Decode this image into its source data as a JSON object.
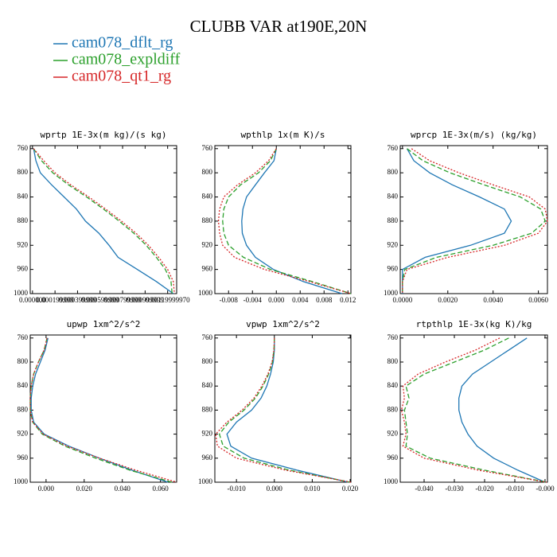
{
  "title": "CLUBB VAR at190E,20N",
  "legend": [
    {
      "name": "cam078_dflt_rg",
      "color": "#1f77b4",
      "dash": "none"
    },
    {
      "name": "cam078_expldiff",
      "color": "#2ca02c",
      "dash": "6,3"
    },
    {
      "name": "cam078_qt1_rg",
      "color": "#d62728",
      "dash": "2,2"
    }
  ],
  "chart_data": [
    {
      "type": "line",
      "title": "wprtp  1E-3x(m kg)/(s kg)",
      "y": [
        760,
        780,
        800,
        820,
        840,
        860,
        880,
        900,
        920,
        940,
        960,
        980,
        1000
      ],
      "ylim": [
        1000,
        755
      ],
      "yticks": [
        760,
        800,
        840,
        880,
        920,
        960,
        1000
      ],
      "xlim": [
        -2e-05,
        0.00128
      ],
      "xticks": [
        {
          "value": 0,
          "label": "0.000000"
        },
        {
          "value": 0.0002,
          "label": "0.000199999"
        },
        {
          "value": 0.0004,
          "label": "0.000399999"
        },
        {
          "value": 0.0006,
          "label": "0.000599999"
        },
        {
          "value": 0.0008,
          "label": "0.000799999"
        },
        {
          "value": 0.001,
          "label": "0.000999999"
        },
        {
          "value": 0.0012,
          "label": "0.00119999970"
        }
      ],
      "series": [
        {
          "values": [
            1e-05,
            3e-05,
            7e-05,
            0.00017,
            0.00028,
            0.00039,
            0.00047,
            0.00059,
            0.00068,
            0.00076,
            0.00093,
            0.0011,
            0.00125
          ]
        },
        {
          "values": [
            1e-05,
            8e-05,
            0.00018,
            0.00032,
            0.00048,
            0.00063,
            0.00077,
            0.0009,
            0.00101,
            0.0011,
            0.00118,
            0.00123,
            0.00124
          ]
        },
        {
          "values": [
            1e-05,
            0.0001,
            0.0002,
            0.00034,
            0.0005,
            0.00065,
            0.00079,
            0.00092,
            0.00103,
            0.00112,
            0.0012,
            0.00125,
            0.00126
          ]
        }
      ]
    },
    {
      "type": "line",
      "title": "wpthlp  1x(m K)/s",
      "y": [
        760,
        780,
        800,
        820,
        840,
        860,
        880,
        900,
        920,
        940,
        960,
        980,
        1000
      ],
      "ylim": [
        1000,
        755
      ],
      "yticks": [
        760,
        800,
        840,
        880,
        920,
        960,
        1000
      ],
      "xlim": [
        -0.0103,
        0.0125
      ],
      "xticks": [
        -0.008,
        -0.004,
        {
          "value": 0,
          "label": "0.000"
        },
        0.004,
        0.008,
        0.012
      ],
      "series": [
        {
          "values": [
            0,
            -0.0004,
            -0.002,
            -0.0035,
            -0.005,
            -0.0056,
            -0.0058,
            -0.0057,
            -0.005,
            -0.0035,
            -0.0005,
            0.0045,
            0.011
          ]
        },
        {
          "values": [
            0,
            -0.001,
            -0.003,
            -0.006,
            -0.008,
            -0.0088,
            -0.009,
            -0.0088,
            -0.008,
            -0.0055,
            -0.001,
            0.006,
            0.0125
          ]
        },
        {
          "values": [
            0,
            -0.0013,
            -0.0035,
            -0.0065,
            -0.0088,
            -0.0095,
            -0.0097,
            -0.0095,
            -0.009,
            -0.007,
            -0.002,
            0.0055,
            0.0125
          ]
        }
      ]
    },
    {
      "type": "line",
      "title": "wprcp  1E-3x(m/s) (kg/kg)",
      "y": [
        760,
        780,
        800,
        820,
        840,
        860,
        880,
        900,
        920,
        940,
        960,
        980,
        1000
      ],
      "ylim": [
        1000,
        755
      ],
      "yticks": [
        760,
        800,
        840,
        880,
        920,
        960,
        1000
      ],
      "xlim": [
        -0.0001,
        0.0064
      ],
      "xticks": [
        {
          "value": 0,
          "label": "0.0000"
        },
        {
          "value": 0.002,
          "label": "0.0020"
        },
        {
          "value": 0.004,
          "label": "0.0040"
        },
        {
          "value": 0.006,
          "label": "0.0060"
        }
      ],
      "series": [
        {
          "values": [
            0.0002,
            0.0005,
            0.0012,
            0.0022,
            0.0034,
            0.0045,
            0.0048,
            0.0045,
            0.003,
            0.001,
            0,
            0,
            0
          ]
        },
        {
          "values": [
            0.0002,
            0.0009,
            0.0021,
            0.0036,
            0.0052,
            0.0061,
            0.0063,
            0.0057,
            0.004,
            0.0015,
            0.0001,
            0,
            0
          ]
        },
        {
          "values": [
            0.0004,
            0.0012,
            0.0025,
            0.004,
            0.0056,
            0.0063,
            0.0064,
            0.006,
            0.0045,
            0.002,
            0.0002,
            0,
            0
          ]
        }
      ]
    },
    {
      "type": "line",
      "title": "upwp  1xm^2/s^2",
      "y": [
        760,
        780,
        800,
        820,
        840,
        860,
        880,
        900,
        920,
        940,
        960,
        980,
        1000
      ],
      "ylim": [
        1000,
        755
      ],
      "yticks": [
        760,
        800,
        840,
        880,
        920,
        960,
        1000
      ],
      "xlim": [
        -0.0083,
        0.0685
      ],
      "xticks": [
        {
          "value": 0,
          "label": "0.000"
        },
        {
          "value": 0.02,
          "label": "0.020"
        },
        {
          "value": 0.04,
          "label": "0.040"
        },
        {
          "value": 0.06,
          "label": "0.060"
        }
      ],
      "series": [
        {
          "values": [
            0.001,
            -0.0005,
            -0.003,
            -0.0055,
            -0.007,
            -0.0078,
            -0.0078,
            -0.0065,
            -0.001,
            0.012,
            0.028,
            0.045,
            0.064
          ]
        },
        {
          "values": [
            0.0005,
            -0.001,
            -0.004,
            -0.0065,
            -0.0078,
            -0.0083,
            -0.0083,
            -0.007,
            -0.002,
            0.01,
            0.026,
            0.044,
            0.066
          ]
        },
        {
          "values": [
            0.0005,
            -0.001,
            -0.004,
            -0.0065,
            -0.0078,
            -0.0083,
            -0.0083,
            -0.007,
            -0.0015,
            0.011,
            0.028,
            0.047,
            0.0685
          ]
        }
      ]
    },
    {
      "type": "line",
      "title": "vpwp  1xm^2/s^2",
      "y": [
        760,
        780,
        800,
        820,
        840,
        860,
        880,
        900,
        920,
        940,
        960,
        980,
        1000
      ],
      "ylim": [
        1000,
        755
      ],
      "yticks": [
        760,
        800,
        840,
        880,
        920,
        960,
        1000
      ],
      "xlim": [
        -0.0157,
        0.0202
      ],
      "xticks": [
        {
          "value": -0.01,
          "label": "-0.010"
        },
        {
          "value": 0,
          "label": "0.000"
        },
        {
          "value": 0.01,
          "label": "0.010"
        },
        {
          "value": 0.02,
          "label": "0.020"
        }
      ],
      "series": [
        {
          "values": [
            0,
            0,
            -0.0003,
            -0.001,
            -0.002,
            -0.0035,
            -0.006,
            -0.01,
            -0.0125,
            -0.0115,
            -0.006,
            0.006,
            0.0195
          ]
        },
        {
          "values": [
            0,
            -0.0001,
            -0.0005,
            -0.0015,
            -0.003,
            -0.005,
            -0.008,
            -0.012,
            -0.0145,
            -0.0135,
            -0.008,
            0.004,
            0.02
          ]
        },
        {
          "values": [
            0,
            -0.0001,
            -0.0006,
            -0.0017,
            -0.0033,
            -0.0054,
            -0.0085,
            -0.0125,
            -0.0155,
            -0.015,
            -0.01,
            0.003,
            0.0202
          ]
        }
      ]
    },
    {
      "type": "line",
      "title": "rtpthlp  1E-3x(kg K)/kg",
      "y": [
        760,
        780,
        800,
        820,
        840,
        860,
        880,
        900,
        920,
        940,
        960,
        980,
        1000
      ],
      "ylim": [
        1000,
        755
      ],
      "yticks": [
        760,
        800,
        840,
        880,
        920,
        960,
        1000
      ],
      "xlim": [
        -0.0479,
        0.0008
      ],
      "xticks": [
        {
          "value": -0.04,
          "label": "-0.040"
        },
        {
          "value": -0.03,
          "label": "-0.030"
        },
        {
          "value": -0.02,
          "label": "-0.020"
        },
        {
          "value": -0.01,
          "label": "-0.010"
        },
        {
          "value": 0,
          "label": "-0.000"
        }
      ],
      "series": [
        {
          "values": [
            -0.006,
            -0.012,
            -0.018,
            -0.024,
            -0.0275,
            -0.0285,
            -0.0285,
            -0.0275,
            -0.0255,
            -0.0225,
            -0.017,
            -0.009,
            0
          ]
        },
        {
          "values": [
            -0.012,
            -0.02,
            -0.03,
            -0.04,
            -0.046,
            -0.045,
            -0.0465,
            -0.046,
            -0.0455,
            -0.046,
            -0.038,
            -0.02,
            0.0005
          ]
        },
        {
          "values": [
            -0.015,
            -0.023,
            -0.033,
            -0.042,
            -0.047,
            -0.0465,
            -0.0475,
            -0.0465,
            -0.046,
            -0.047,
            -0.04,
            -0.022,
            0.0005
          ]
        }
      ]
    }
  ]
}
